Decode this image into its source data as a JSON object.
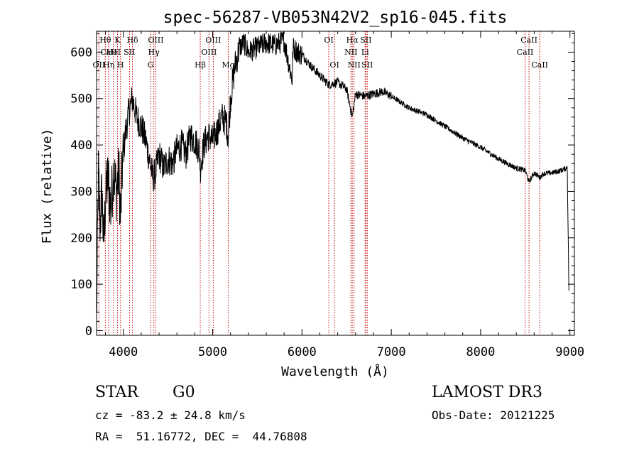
{
  "chart_data": {
    "type": "line",
    "title": "spec-56287-VB053N42V2_sp16-045.fits",
    "xlabel": "Wavelength (Å)",
    "ylabel": "Flux (relative)",
    "xlim": [
      3700,
      9050
    ],
    "ylim": [
      -10,
      645
    ],
    "x_ticks": [
      4000,
      5000,
      6000,
      7000,
      8000,
      9000
    ],
    "y_ticks": [
      0,
      100,
      200,
      300,
      400,
      500,
      600
    ],
    "grid": false,
    "line_color": "#000000",
    "marker_color": "#c00000",
    "spectrum_anchors": {
      "x": [
        3700,
        3720,
        3740,
        3760,
        3780,
        3800,
        3830,
        3860,
        3890,
        3920,
        3950,
        3968,
        3990,
        4020,
        4060,
        4100,
        4150,
        4200,
        4250,
        4300,
        4330,
        4360,
        4400,
        4450,
        4500,
        4550,
        4600,
        4650,
        4700,
        4750,
        4800,
        4850,
        4862,
        4900,
        4950,
        5000,
        5050,
        5100,
        5150,
        5175,
        5200,
        5250,
        5300,
        5350,
        5400,
        5500,
        5600,
        5700,
        5800,
        5890,
        5900,
        5950,
        6000,
        6100,
        6200,
        6300,
        6400,
        6500,
        6563,
        6600,
        6700,
        6800,
        6900,
        7000,
        7200,
        7400,
        7600,
        7800,
        8000,
        8200,
        8400,
        8500,
        8542,
        8600,
        8662,
        8700,
        8800,
        8900,
        8960,
        8970,
        8990
      ],
      "y": [
        20,
        340,
        230,
        300,
        180,
        290,
        330,
        260,
        350,
        300,
        340,
        240,
        360,
        420,
        470,
        500,
        460,
        440,
        410,
        360,
        330,
        340,
        380,
        350,
        370,
        360,
        390,
        400,
        380,
        420,
        410,
        390,
        350,
        400,
        420,
        410,
        430,
        460,
        450,
        420,
        500,
        570,
        610,
        620,
        600,
        610,
        620,
        615,
        625,
        540,
        610,
        600,
        595,
        570,
        550,
        530,
        535,
        520,
        460,
        510,
        505,
        510,
        515,
        505,
        480,
        465,
        440,
        415,
        395,
        370,
        350,
        345,
        320,
        340,
        330,
        338,
        340,
        345,
        350,
        355,
        70
      ]
    },
    "lines": [
      {
        "label": "Hθ",
        "x": 3798,
        "row": 0
      },
      {
        "label": "CaII",
        "x": 3835,
        "row": 1
      },
      {
        "label": "OII",
        "x": 3727,
        "row": 2
      },
      {
        "label": "Hη",
        "x": 3836,
        "row": 2
      },
      {
        "label": "K",
        "x": 3934,
        "row": 0
      },
      {
        "label": "HeI",
        "x": 3889,
        "row": 1
      },
      {
        "label": "H",
        "x": 3968,
        "row": 2
      },
      {
        "label": "SII",
        "x": 4069,
        "row": 1
      },
      {
        "label": "Hδ",
        "x": 4102,
        "row": 0
      },
      {
        "label": "OIII",
        "x": 4363,
        "row": 0
      },
      {
        "label": "Hγ",
        "x": 4341,
        "row": 1
      },
      {
        "label": "G",
        "x": 4305,
        "row": 2
      },
      {
        "label": "Hβ",
        "x": 4861,
        "row": 2
      },
      {
        "label": "OIII",
        "x": 5007,
        "row": 0
      },
      {
        "label": "OIII",
        "x": 4959,
        "row": 1
      },
      {
        "label": "Mg",
        "x": 5175,
        "row": 2
      },
      {
        "label": "OI",
        "x": 6300,
        "row": 0
      },
      {
        "label": "OI",
        "x": 6364,
        "row": 2
      },
      {
        "label": "Hα",
        "x": 6563,
        "row": 0
      },
      {
        "label": "NII",
        "x": 6548,
        "row": 1
      },
      {
        "label": "NII",
        "x": 6583,
        "row": 2
      },
      {
        "label": "SII",
        "x": 6716,
        "row": 0
      },
      {
        "label": "Li",
        "x": 6707,
        "row": 1
      },
      {
        "label": "SII",
        "x": 6731,
        "row": 2
      },
      {
        "label": "CaII",
        "x": 8542,
        "row": 0
      },
      {
        "label": "CaII",
        "x": 8498,
        "row": 1
      },
      {
        "label": "CaII",
        "x": 8662,
        "row": 2
      }
    ]
  },
  "info": {
    "class": "STAR",
    "subclass": "G0",
    "survey": "LAMOST DR3",
    "cz": "cz = -83.2 ± 24.8 km/s",
    "obsdate": "Obs-Date: 20121225",
    "coords": "RA =  51.16772, DEC =  44.76808"
  }
}
